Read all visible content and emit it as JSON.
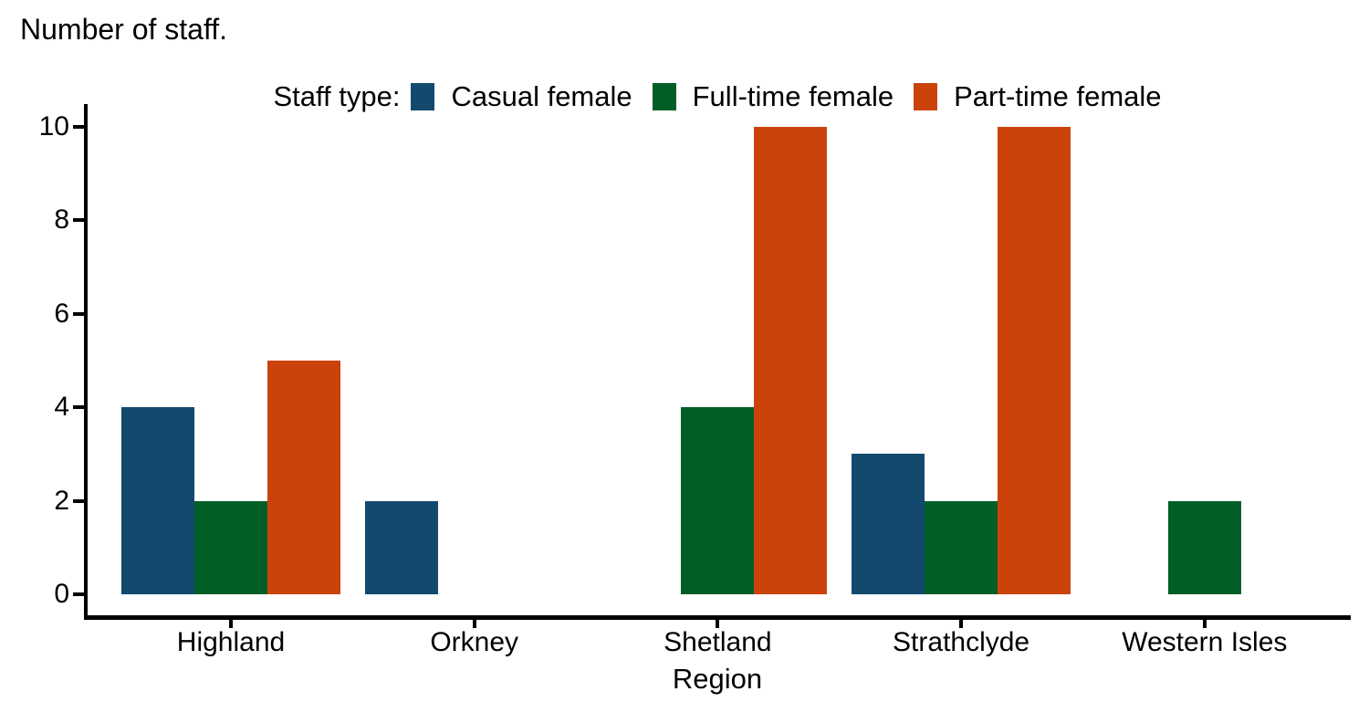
{
  "title": "Number of staff.",
  "chart_data": {
    "type": "bar",
    "title": "Number of staff.",
    "legend_title": "Staff type:",
    "legend_position": "top",
    "categories": [
      "Highland",
      "Orkney",
      "Shetland",
      "Strathclyde",
      "Western Isles"
    ],
    "series": [
      {
        "name": "Casual female",
        "color": "#14496E",
        "values": [
          4,
          2,
          0,
          3,
          0
        ]
      },
      {
        "name": "Full-time female",
        "color": "#005F27",
        "values": [
          2,
          0,
          4,
          2,
          2
        ]
      },
      {
        "name": "Part-time female",
        "color": "#CB430A",
        "values": [
          5,
          0,
          10,
          10,
          0
        ]
      }
    ],
    "xlabel": "Region",
    "ylabel": "",
    "ylim": [
      0,
      10
    ],
    "yticks": [
      0,
      2,
      4,
      6,
      8,
      10
    ],
    "grid": false
  },
  "colors": {
    "axis": "#000000",
    "text": "#000000",
    "background": "#FFFFFF"
  }
}
